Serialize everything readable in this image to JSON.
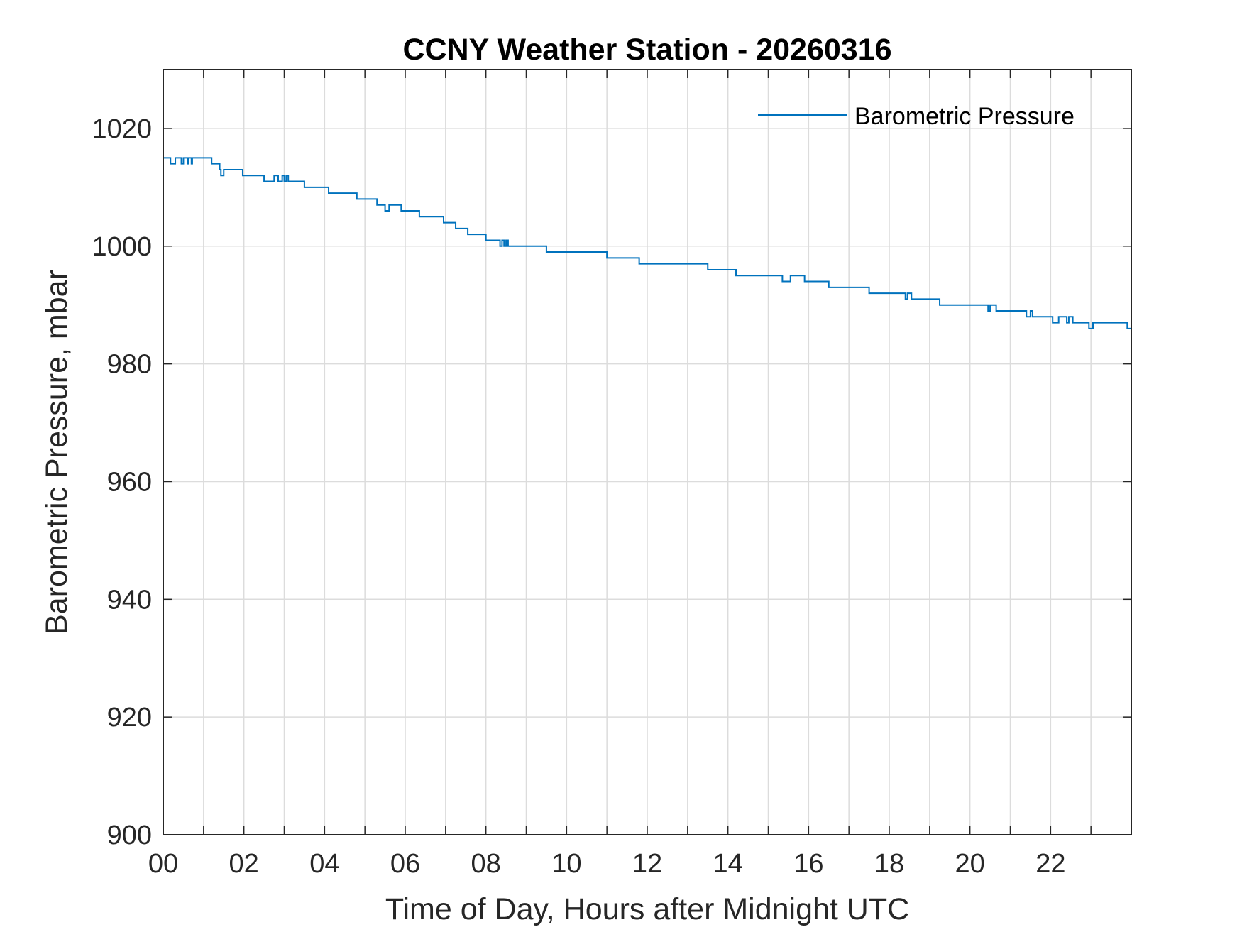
{
  "chart_data": {
    "type": "line",
    "title": "CCNY Weather Station - 20260316",
    "xlabel": "Time of Day, Hours after Midnight UTC",
    "ylabel": "Barometric Pressure, mbar",
    "xlim": [
      0,
      24
    ],
    "ylim": [
      900,
      1030
    ],
    "xticks": [
      0,
      2,
      4,
      6,
      8,
      10,
      12,
      14,
      16,
      18,
      20,
      22
    ],
    "xtick_labels": [
      "00",
      "02",
      "04",
      "06",
      "08",
      "10",
      "12",
      "14",
      "16",
      "18",
      "20",
      "22"
    ],
    "xgrid_minor": [
      1,
      3,
      5,
      7,
      9,
      11,
      13,
      15,
      17,
      19,
      21,
      23
    ],
    "yticks": [
      900,
      920,
      940,
      960,
      980,
      1000,
      1020
    ],
    "ytick_labels": [
      "900",
      "920",
      "940",
      "960",
      "980",
      "1000",
      "1020"
    ],
    "grid": true,
    "legend_position": "top-right",
    "series": [
      {
        "name": "Barometric Pressure",
        "color": "#0072BD",
        "step": true,
        "x": [
          0.0,
          0.18,
          0.3,
          0.45,
          0.5,
          0.6,
          0.63,
          0.7,
          0.72,
          1.2,
          1.4,
          1.43,
          1.5,
          1.97,
          2.5,
          2.75,
          2.85,
          2.95,
          3.0,
          3.05,
          3.1,
          3.5,
          4.1,
          4.8,
          5.3,
          5.5,
          5.6,
          5.9,
          6.35,
          6.95,
          7.25,
          7.55,
          8.0,
          8.35,
          8.4,
          8.45,
          8.5,
          8.55,
          9.5,
          11.0,
          11.8,
          13.5,
          14.2,
          15.35,
          15.55,
          15.6,
          15.9,
          16.5,
          17.5,
          18.4,
          18.45,
          18.55,
          18.6,
          19.25,
          20.45,
          20.5,
          20.65,
          21.4,
          21.5,
          21.55,
          22.05,
          22.2,
          22.4,
          22.45,
          22.55,
          22.95,
          23.05,
          23.2,
          23.9,
          24.0
        ],
        "values": [
          1015,
          1014,
          1015,
          1014,
          1015,
          1014,
          1015,
          1014,
          1015,
          1014,
          1013,
          1012,
          1013,
          1012,
          1011,
          1012,
          1011,
          1012,
          1011,
          1012,
          1011,
          1010,
          1009,
          1008,
          1007,
          1006,
          1007,
          1006,
          1005,
          1004,
          1003,
          1002,
          1001,
          1000,
          1001,
          1000,
          1001,
          1000,
          999,
          998,
          997,
          996,
          995,
          994,
          995,
          995,
          994,
          993,
          992,
          991,
          992,
          991,
          991,
          990,
          989,
          990,
          989,
          988,
          989,
          988,
          987,
          988,
          987,
          988,
          987,
          986,
          987,
          987,
          986,
          986
        ]
      }
    ]
  }
}
